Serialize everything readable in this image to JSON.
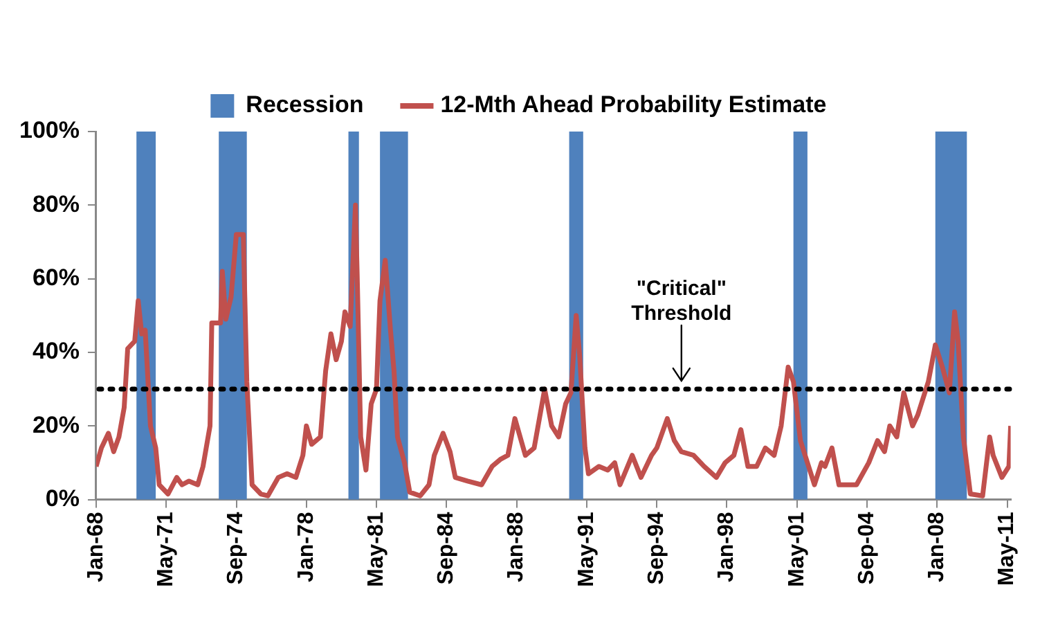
{
  "chart_data": {
    "type": "line",
    "x": [
      "1968-01",
      "1968-04",
      "1968-08",
      "1968-11",
      "1969-02",
      "1969-05",
      "1969-07",
      "1969-11",
      "1970-01",
      "1970-03",
      "1970-05",
      "1970-08",
      "1970-11",
      "1971-01",
      "1971-06",
      "1971-11",
      "1972-02",
      "1972-06",
      "1972-11",
      "1973-02",
      "1973-06",
      "1973-07",
      "1973-12",
      "1974-01",
      "1974-03",
      "1974-06",
      "1974-09",
      "1975-01",
      "1975-03",
      "1975-06",
      "1975-11",
      "1976-03",
      "1976-09",
      "1977-02",
      "1977-07",
      "1977-11",
      "1978-01",
      "1978-04",
      "1978-09",
      "1978-12",
      "1979-03",
      "1979-06",
      "1979-09",
      "1979-11",
      "1980-02",
      "1980-05",
      "1980-06",
      "1980-08",
      "1980-11",
      "1981-02",
      "1981-05",
      "1981-07",
      "1981-10",
      "1982-01",
      "1982-03",
      "1982-05",
      "1982-09",
      "1982-12",
      "1983-06",
      "1983-11",
      "1984-02",
      "1984-07",
      "1984-11",
      "1985-02",
      "1985-09",
      "1986-05",
      "1986-11",
      "1987-04",
      "1987-08",
      "1987-12",
      "1988-06",
      "1988-11",
      "1989-05",
      "1989-09",
      "1990-01",
      "1990-05",
      "1990-08",
      "1990-11",
      "1991-01",
      "1991-04",
      "1991-06",
      "1991-12",
      "1992-05",
      "1992-09",
      "1992-12",
      "1993-07",
      "1993-12",
      "1994-06",
      "1994-09",
      "1995-03",
      "1995-07",
      "1995-11",
      "1996-06",
      "1996-12",
      "1997-07",
      "1997-12",
      "1998-05",
      "1998-09",
      "1999-01",
      "1999-06",
      "1999-11",
      "2000-04",
      "2000-08",
      "2000-12",
      "2001-03",
      "2001-07",
      "2001-11",
      "2002-03",
      "2002-07",
      "2002-09",
      "2003-01",
      "2003-05",
      "2003-10",
      "2004-03",
      "2004-10",
      "2005-03",
      "2005-07",
      "2005-10",
      "2006-02",
      "2006-06",
      "2006-11",
      "2007-02",
      "2007-08",
      "2007-12",
      "2008-04",
      "2008-08",
      "2008-11",
      "2009-01",
      "2009-04",
      "2009-08",
      "2010-03",
      "2010-07",
      "2010-09",
      "2011-02",
      "2011-06",
      "2011-07"
    ],
    "series": [
      {
        "name": "12-Mth Ahead Probability Estimate",
        "color": "#c0504d",
        "values": [
          9,
          14,
          18,
          13,
          17,
          25,
          41,
          43,
          54,
          45,
          46,
          20,
          14,
          4,
          1.5,
          6,
          4,
          5,
          4,
          9,
          20,
          48,
          48,
          62,
          49,
          55,
          72,
          72,
          32,
          4,
          1.5,
          1,
          6,
          7,
          6,
          12,
          20,
          15,
          17,
          35,
          45,
          38,
          43,
          51,
          47,
          80,
          61,
          17,
          8,
          26,
          30,
          54,
          65,
          46,
          35,
          17,
          10,
          2,
          1,
          4,
          12,
          18,
          13,
          6,
          5,
          4,
          9,
          11,
          12,
          22,
          12,
          14,
          30,
          20,
          17,
          26,
          29,
          50,
          39,
          14,
          7,
          9,
          8,
          10,
          4,
          12,
          6,
          12,
          14,
          22,
          16,
          13,
          12,
          9,
          6,
          10,
          12,
          19,
          9,
          9,
          14,
          12,
          20,
          36,
          32,
          16,
          10,
          4,
          10,
          9,
          14,
          4,
          4,
          4,
          10,
          16,
          13,
          20,
          17,
          29,
          20,
          23,
          32,
          42,
          36,
          29,
          51,
          43,
          17,
          1.5,
          1,
          17,
          12,
          6,
          9,
          20
        ]
      }
    ],
    "xlim": [
      "1968-01",
      "2011-07"
    ],
    "xticks": [
      {
        "value": "1968-01",
        "label": "Jan-68"
      },
      {
        "value": "1971-05",
        "label": "May-71"
      },
      {
        "value": "1974-09",
        "label": "Sep-74"
      },
      {
        "value": "1978-01",
        "label": "Jan-78"
      },
      {
        "value": "1981-05",
        "label": "May-81"
      },
      {
        "value": "1984-09",
        "label": "Sep-84"
      },
      {
        "value": "1988-01",
        "label": "Jan-88"
      },
      {
        "value": "1991-05",
        "label": "May-91"
      },
      {
        "value": "1994-09",
        "label": "Sep-94"
      },
      {
        "value": "1998-01",
        "label": "Jan-98"
      },
      {
        "value": "2001-05",
        "label": "May-01"
      },
      {
        "value": "2004-09",
        "label": "Sep-04"
      },
      {
        "value": "2008-01",
        "label": "Jan-08"
      },
      {
        "value": "2011-05",
        "label": "May-11"
      }
    ],
    "ylim": [
      0,
      100
    ],
    "yticks": [
      {
        "value": 0,
        "label": "0%"
      },
      {
        "value": 20,
        "label": "20%"
      },
      {
        "value": 40,
        "label": "40%"
      },
      {
        "value": 60,
        "label": "60%"
      },
      {
        "value": 80,
        "label": "80%"
      },
      {
        "value": 100,
        "label": "100%"
      }
    ],
    "bands": [
      {
        "axis": "x",
        "from": "1969-12",
        "to": "1970-11",
        "label": "Recession",
        "color": "#4f81bd"
      },
      {
        "axis": "x",
        "from": "1973-11",
        "to": "1975-03",
        "color": "#4f81bd"
      },
      {
        "axis": "x",
        "from": "1980-01",
        "to": "1980-07",
        "color": "#4f81bd"
      },
      {
        "axis": "x",
        "from": "1981-07",
        "to": "1982-11",
        "color": "#4f81bd"
      },
      {
        "axis": "x",
        "from": "1990-07",
        "to": "1991-03",
        "color": "#4f81bd"
      },
      {
        "axis": "x",
        "from": "2001-03",
        "to": "2001-11",
        "color": "#4f81bd"
      },
      {
        "axis": "x",
        "from": "2007-12",
        "to": "2009-06",
        "color": "#4f81bd"
      }
    ],
    "ref_lines": [
      {
        "axis": "y",
        "value": 30,
        "color": "#000000",
        "line_style": "dotted",
        "label": "\"Critical\" Threshold"
      }
    ],
    "grid": false,
    "legend": "top",
    "marker": "none",
    "line_style": "solid"
  }
}
